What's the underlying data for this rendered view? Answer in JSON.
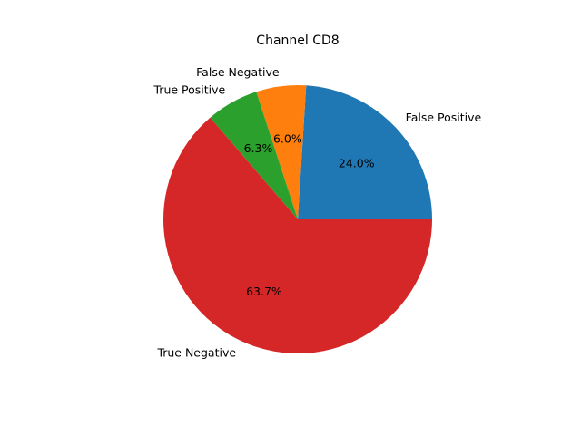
{
  "chart_data": {
    "type": "pie",
    "title": "Channel CD8",
    "categories": [
      "False Positive",
      "False Negative",
      "True Positive",
      "True Negative"
    ],
    "values": [
      24.0,
      6.0,
      6.3,
      63.7
    ],
    "percent_labels": [
      "24.0%",
      "6.0%",
      "6.3%",
      "63.7%"
    ],
    "colors": [
      "#1f77b4",
      "#ff7f0e",
      "#2ca02c",
      "#d62728"
    ],
    "start_angle_deg": 0,
    "direction": "counterclockwise",
    "legend": "none"
  }
}
